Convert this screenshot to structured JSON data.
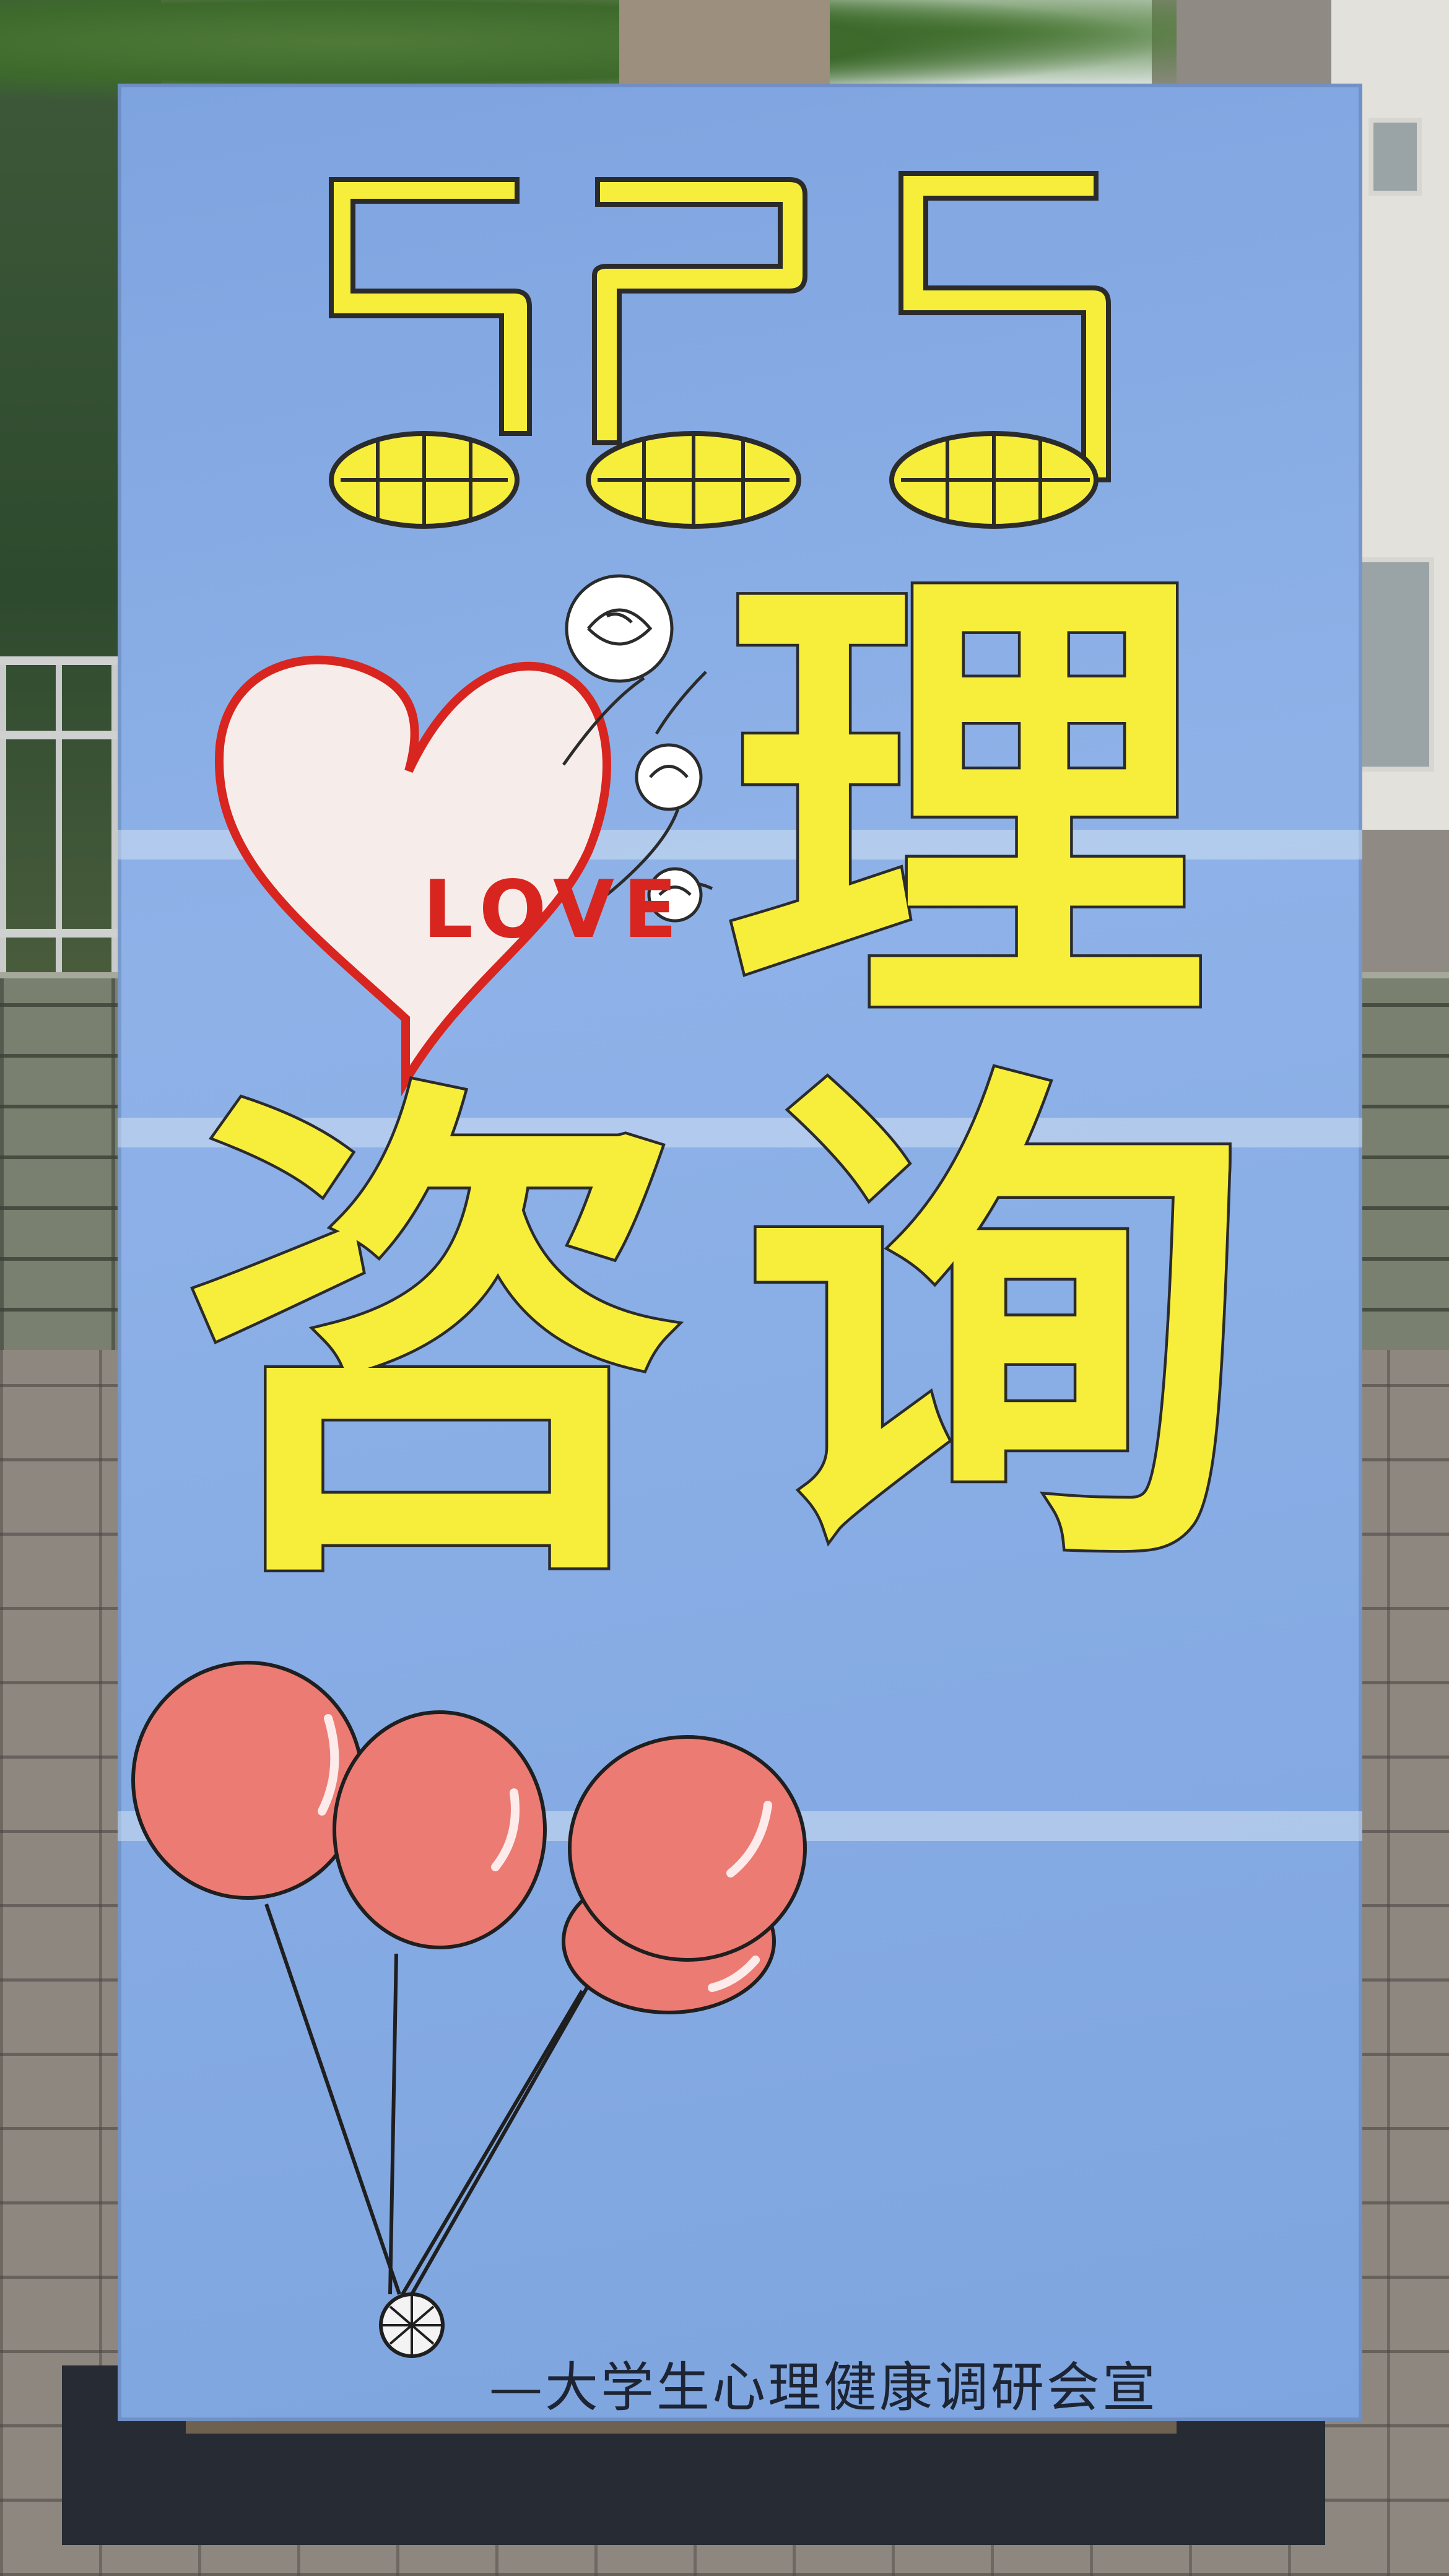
{
  "scene": "hand-painted poster board standing on a campus sidewalk",
  "poster": {
    "number": "525",
    "word_love": "LOVE",
    "char_1": "理",
    "char_2": "咨",
    "char_3": "询",
    "footer": "—大学生心理健康调研会宣"
  },
  "colors": {
    "board_blue": "#86abe4",
    "lettering_yellow": "#f7ee3c",
    "heart_red": "#d8251f",
    "balloon_red": "#ec7b74"
  },
  "icons": [
    "heart-icon",
    "rose-icon",
    "balloon-icon",
    "music-note-icon"
  ]
}
